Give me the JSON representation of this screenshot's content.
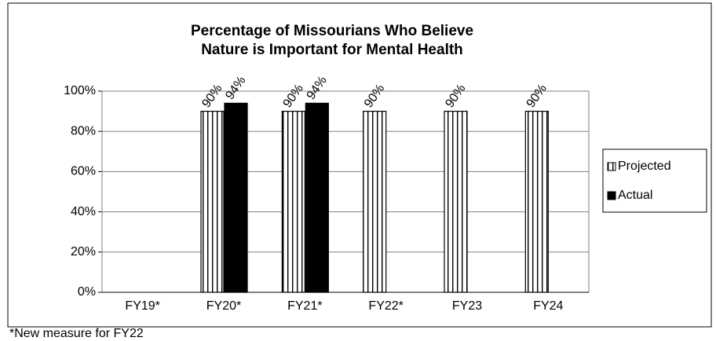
{
  "chart_data": {
    "type": "bar",
    "title": [
      "Percentage of Missourians Who Believe",
      "Nature is Important for Mental Health"
    ],
    "categories": [
      "FY19*",
      "FY20*",
      "FY21*",
      "FY22*",
      "FY23",
      "FY24"
    ],
    "series": [
      {
        "name": "Projected",
        "color": "#000000",
        "pattern": "vertical-stripes",
        "values": [
          null,
          90,
          90,
          90,
          90,
          90
        ],
        "value_labels": [
          null,
          "90%",
          "90%",
          "90%",
          "90%",
          "90%"
        ]
      },
      {
        "name": "Actual",
        "color": "#000000",
        "values": [
          null,
          94,
          94,
          null,
          null,
          null
        ],
        "value_labels": [
          null,
          "94%",
          "94%",
          null,
          null,
          null
        ]
      }
    ],
    "ylim": [
      0,
      100
    ],
    "yticks": [
      {
        "value": 0,
        "label": "0%"
      },
      {
        "value": 20,
        "label": "20%"
      },
      {
        "value": 40,
        "label": "40%"
      },
      {
        "value": 60,
        "label": "60%"
      },
      {
        "value": 80,
        "label": "80%"
      },
      {
        "value": 100,
        "label": "100%"
      }
    ],
    "grid": true,
    "legend": "right",
    "footnote": "*New measure for FY22"
  }
}
